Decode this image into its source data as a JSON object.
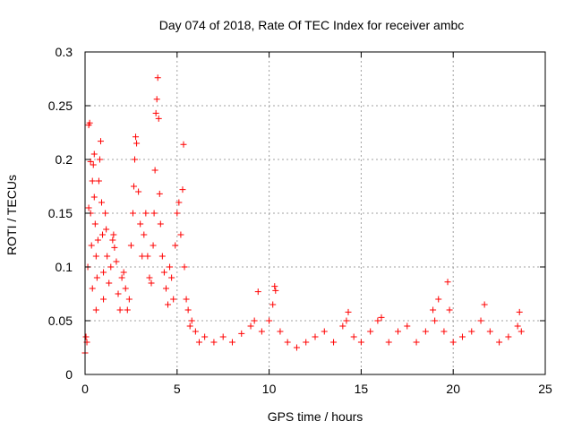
{
  "chart_data": {
    "type": "scatter",
    "title": "Day 074 of 2018, Rate Of TEC Index for receiver ambc",
    "xlabel": "GPS time / hours",
    "ylabel": "ROTI / TECUs",
    "xlim": [
      0,
      25
    ],
    "ylim": [
      0,
      0.3
    ],
    "x_ticks": [
      0,
      5,
      10,
      15,
      20,
      25
    ],
    "x_tick_labels": [
      "0",
      "5",
      "10",
      "15",
      "20",
      "25"
    ],
    "y_ticks": [
      0,
      0.05,
      0.1,
      0.15,
      0.2,
      0.25,
      0.3
    ],
    "y_tick_labels": [
      "0",
      "0.05",
      "0.1",
      "0.15",
      "0.2",
      "0.25",
      "0.3"
    ],
    "grid": true,
    "marker": "+",
    "colors": {
      "series": "#ff0000",
      "grid": "#a0a0a0",
      "axis": "#000000"
    },
    "series": [
      {
        "name": "ROTI",
        "points": [
          [
            0.0,
            0.02
          ],
          [
            0.05,
            0.035
          ],
          [
            0.1,
            0.03
          ],
          [
            0.15,
            0.1
          ],
          [
            0.2,
            0.155
          ],
          [
            0.2,
            0.232
          ],
          [
            0.25,
            0.234
          ],
          [
            0.3,
            0.198
          ],
          [
            0.3,
            0.15
          ],
          [
            0.35,
            0.12
          ],
          [
            0.4,
            0.08
          ],
          [
            0.4,
            0.18
          ],
          [
            0.45,
            0.195
          ],
          [
            0.5,
            0.205
          ],
          [
            0.5,
            0.165
          ],
          [
            0.55,
            0.14
          ],
          [
            0.6,
            0.11
          ],
          [
            0.6,
            0.06
          ],
          [
            0.65,
            0.09
          ],
          [
            0.7,
            0.125
          ],
          [
            0.75,
            0.18
          ],
          [
            0.8,
            0.2
          ],
          [
            0.85,
            0.217
          ],
          [
            0.9,
            0.16
          ],
          [
            0.95,
            0.13
          ],
          [
            1.0,
            0.095
          ],
          [
            1.0,
            0.07
          ],
          [
            1.1,
            0.15
          ],
          [
            1.15,
            0.135
          ],
          [
            1.2,
            0.11
          ],
          [
            1.3,
            0.085
          ],
          [
            1.4,
            0.1
          ],
          [
            1.5,
            0.125
          ],
          [
            1.55,
            0.13
          ],
          [
            1.6,
            0.118
          ],
          [
            1.7,
            0.105
          ],
          [
            1.8,
            0.075
          ],
          [
            1.9,
            0.06
          ],
          [
            2.0,
            0.09
          ],
          [
            2.1,
            0.095
          ],
          [
            2.2,
            0.08
          ],
          [
            2.3,
            0.06
          ],
          [
            2.4,
            0.07
          ],
          [
            2.5,
            0.12
          ],
          [
            2.6,
            0.15
          ],
          [
            2.65,
            0.175
          ],
          [
            2.7,
            0.2
          ],
          [
            2.75,
            0.221
          ],
          [
            2.8,
            0.215
          ],
          [
            2.9,
            0.17
          ],
          [
            3.0,
            0.14
          ],
          [
            3.1,
            0.11
          ],
          [
            3.2,
            0.13
          ],
          [
            3.3,
            0.15
          ],
          [
            3.4,
            0.11
          ],
          [
            3.5,
            0.09
          ],
          [
            3.6,
            0.085
          ],
          [
            3.7,
            0.12
          ],
          [
            3.75,
            0.15
          ],
          [
            3.8,
            0.19
          ],
          [
            3.85,
            0.243
          ],
          [
            3.9,
            0.256
          ],
          [
            3.95,
            0.276
          ],
          [
            4.0,
            0.238
          ],
          [
            4.05,
            0.168
          ],
          [
            4.1,
            0.14
          ],
          [
            4.2,
            0.11
          ],
          [
            4.3,
            0.095
          ],
          [
            4.4,
            0.08
          ],
          [
            4.5,
            0.065
          ],
          [
            4.6,
            0.1
          ],
          [
            4.7,
            0.09
          ],
          [
            4.8,
            0.07
          ],
          [
            4.9,
            0.12
          ],
          [
            5.0,
            0.15
          ],
          [
            5.1,
            0.16
          ],
          [
            5.2,
            0.13
          ],
          [
            5.3,
            0.172
          ],
          [
            5.35,
            0.214
          ],
          [
            5.4,
            0.1
          ],
          [
            5.5,
            0.07
          ],
          [
            5.6,
            0.06
          ],
          [
            5.7,
            0.045
          ],
          [
            5.8,
            0.05
          ],
          [
            6.0,
            0.04
          ],
          [
            6.2,
            0.03
          ],
          [
            6.5,
            0.035
          ],
          [
            7.0,
            0.03
          ],
          [
            7.5,
            0.035
          ],
          [
            8.0,
            0.03
          ],
          [
            8.5,
            0.038
          ],
          [
            9.0,
            0.045
          ],
          [
            9.2,
            0.05
          ],
          [
            9.4,
            0.077
          ],
          [
            9.6,
            0.04
          ],
          [
            10.0,
            0.05
          ],
          [
            10.2,
            0.065
          ],
          [
            10.3,
            0.082
          ],
          [
            10.35,
            0.078
          ],
          [
            10.6,
            0.04
          ],
          [
            11.0,
            0.03
          ],
          [
            11.5,
            0.025
          ],
          [
            12.0,
            0.03
          ],
          [
            12.5,
            0.035
          ],
          [
            13.0,
            0.04
          ],
          [
            13.5,
            0.03
          ],
          [
            14.0,
            0.045
          ],
          [
            14.2,
            0.05
          ],
          [
            14.3,
            0.058
          ],
          [
            14.6,
            0.035
          ],
          [
            15.0,
            0.03
          ],
          [
            15.5,
            0.04
          ],
          [
            15.9,
            0.05
          ],
          [
            16.1,
            0.053
          ],
          [
            16.5,
            0.03
          ],
          [
            17.0,
            0.04
          ],
          [
            17.5,
            0.045
          ],
          [
            18.0,
            0.03
          ],
          [
            18.5,
            0.04
          ],
          [
            18.9,
            0.06
          ],
          [
            19.0,
            0.05
          ],
          [
            19.2,
            0.07
          ],
          [
            19.5,
            0.04
          ],
          [
            19.7,
            0.086
          ],
          [
            19.8,
            0.06
          ],
          [
            20.0,
            0.03
          ],
          [
            20.5,
            0.035
          ],
          [
            21.0,
            0.04
          ],
          [
            21.5,
            0.05
          ],
          [
            21.7,
            0.065
          ],
          [
            22.0,
            0.04
          ],
          [
            22.5,
            0.03
          ],
          [
            23.0,
            0.035
          ],
          [
            23.5,
            0.045
          ],
          [
            23.6,
            0.058
          ],
          [
            23.7,
            0.04
          ]
        ]
      }
    ]
  }
}
